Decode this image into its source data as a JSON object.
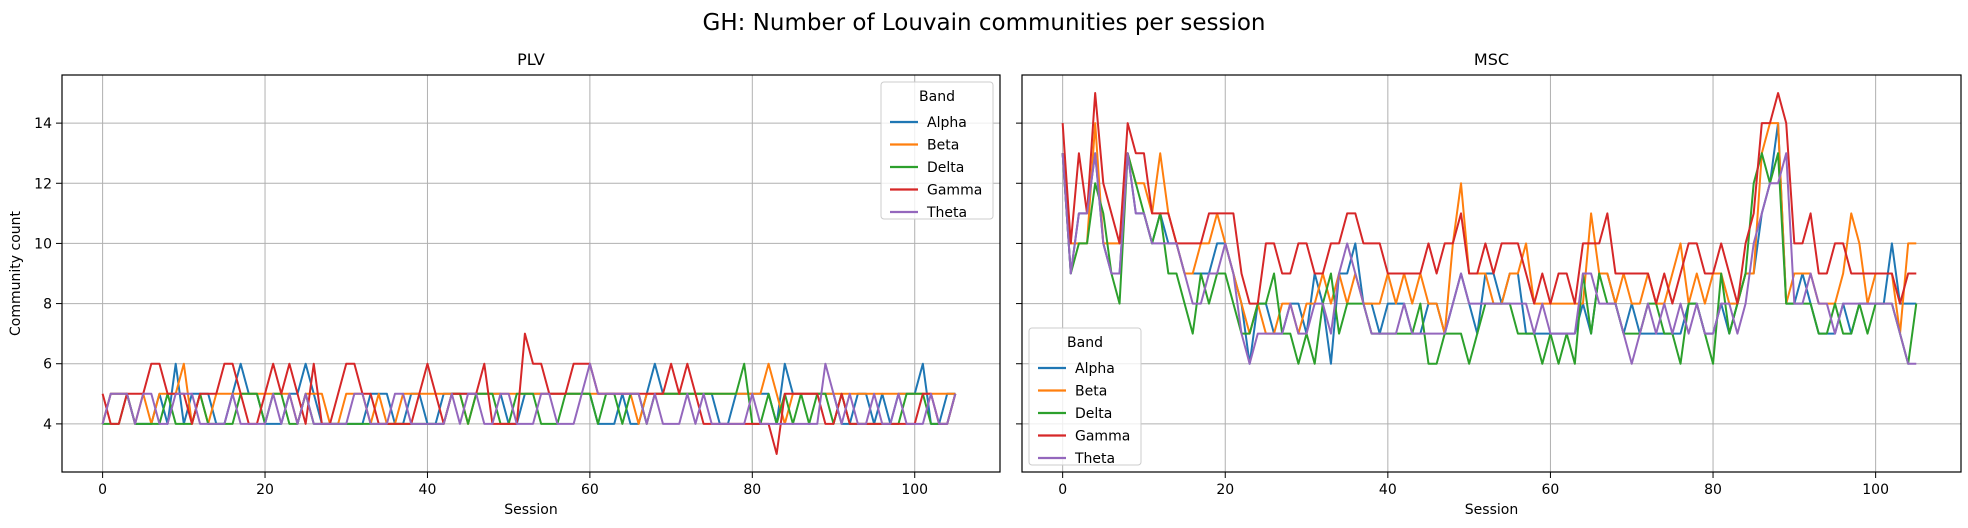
{
  "figure": {
    "suptitle": "GH: Number of Louvain communities per session"
  },
  "colors": {
    "Alpha": "#1f77b4",
    "Beta": "#ff7f0e",
    "Delta": "#2ca02c",
    "Gamma": "#d62728",
    "Theta": "#9467bd",
    "grid": "#b0b0b0"
  },
  "chart_data": [
    {
      "type": "line",
      "title": "PLV",
      "xlabel": "Session",
      "ylabel": "Community count",
      "xlim": [
        -5,
        110.5
      ],
      "ylim": [
        2.4,
        15.6
      ],
      "xticks": [
        0,
        20,
        40,
        60,
        80,
        100
      ],
      "yticks": [
        4,
        6,
        8,
        10,
        12,
        14
      ],
      "grid": true,
      "legend_title": "Band",
      "legend_position": "top-right",
      "series": [
        {
          "name": "Alpha",
          "values": [
            4,
            5,
            5,
            5,
            4,
            4,
            4,
            5,
            4,
            6,
            4,
            5,
            5,
            5,
            4,
            4,
            5,
            6,
            5,
            5,
            4,
            4,
            4,
            5,
            5,
            6,
            5,
            4,
            4,
            4,
            4,
            4,
            4,
            5,
            5,
            5,
            4,
            4,
            5,
            5,
            4,
            4,
            5,
            5,
            5,
            5,
            5,
            5,
            5,
            5,
            4,
            4,
            5,
            5,
            5,
            5,
            5,
            5,
            5,
            5,
            5,
            4,
            4,
            4,
            5,
            4,
            4,
            5,
            6,
            5,
            5,
            5,
            5,
            5,
            5,
            5,
            4,
            4,
            5,
            5,
            5,
            5,
            5,
            4,
            6,
            5,
            5,
            5,
            5,
            5,
            5,
            4,
            4,
            5,
            5,
            4,
            5,
            4,
            5,
            5,
            5,
            6,
            4,
            4,
            5,
            5
          ]
        },
        {
          "name": "Beta",
          "values": [
            4,
            5,
            5,
            5,
            4,
            5,
            4,
            5,
            5,
            5,
            6,
            4,
            5,
            4,
            5,
            5,
            5,
            5,
            5,
            5,
            5,
            5,
            5,
            5,
            4,
            5,
            5,
            5,
            4,
            4,
            5,
            5,
            5,
            4,
            5,
            4,
            4,
            5,
            5,
            5,
            5,
            5,
            5,
            5,
            5,
            4,
            5,
            5,
            5,
            5,
            5,
            5,
            5,
            5,
            5,
            5,
            5,
            5,
            5,
            5,
            5,
            5,
            5,
            5,
            5,
            5,
            4,
            5,
            5,
            5,
            5,
            5,
            5,
            5,
            5,
            5,
            5,
            5,
            5,
            5,
            5,
            5,
            6,
            5,
            4,
            5,
            5,
            5,
            5,
            5,
            5,
            5,
            5,
            5,
            5,
            5,
            5,
            5,
            5,
            5,
            5,
            5,
            5,
            5,
            5,
            5
          ]
        },
        {
          "name": "Delta",
          "values": [
            4,
            4,
            4,
            5,
            4,
            4,
            4,
            4,
            5,
            4,
            4,
            4,
            5,
            4,
            4,
            4,
            4,
            5,
            5,
            5,
            4,
            5,
            5,
            4,
            4,
            5,
            4,
            4,
            4,
            4,
            4,
            4,
            4,
            4,
            4,
            4,
            4,
            4,
            4,
            4,
            4,
            4,
            4,
            5,
            5,
            4,
            5,
            5,
            5,
            4,
            4,
            5,
            5,
            5,
            4,
            4,
            4,
            5,
            5,
            5,
            5,
            4,
            5,
            5,
            4,
            5,
            5,
            4,
            5,
            5,
            5,
            5,
            5,
            5,
            5,
            5,
            5,
            5,
            5,
            6,
            4,
            4,
            5,
            4,
            5,
            4,
            5,
            4,
            5,
            5,
            4,
            5,
            4,
            4,
            4,
            4,
            4,
            4,
            4,
            5,
            5,
            5,
            4,
            4,
            4,
            5
          ]
        },
        {
          "name": "Gamma",
          "values": [
            5,
            4,
            4,
            5,
            5,
            5,
            6,
            6,
            5,
            5,
            5,
            4,
            5,
            5,
            5,
            6,
            6,
            5,
            4,
            4,
            5,
            6,
            5,
            6,
            5,
            4,
            6,
            4,
            4,
            5,
            6,
            6,
            5,
            5,
            4,
            4,
            4,
            4,
            4,
            5,
            6,
            5,
            4,
            5,
            5,
            5,
            5,
            6,
            4,
            4,
            4,
            4,
            7,
            6,
            6,
            5,
            5,
            5,
            6,
            6,
            6,
            5,
            5,
            5,
            5,
            5,
            5,
            5,
            5,
            5,
            6,
            5,
            6,
            5,
            4,
            4,
            4,
            4,
            4,
            4,
            4,
            4,
            4,
            3,
            5,
            5,
            5,
            5,
            5,
            4,
            4,
            5,
            4,
            4,
            4,
            4,
            4,
            4,
            4,
            4,
            4,
            5,
            5,
            4,
            4,
            5
          ]
        },
        {
          "name": "Theta",
          "values": [
            4,
            5,
            5,
            5,
            4,
            5,
            5,
            4,
            4,
            5,
            5,
            5,
            4,
            4,
            4,
            4,
            5,
            4,
            4,
            4,
            4,
            5,
            4,
            5,
            4,
            5,
            4,
            4,
            4,
            4,
            4,
            5,
            5,
            4,
            4,
            4,
            5,
            5,
            4,
            4,
            4,
            4,
            4,
            5,
            4,
            5,
            5,
            4,
            4,
            5,
            5,
            4,
            4,
            4,
            5,
            5,
            4,
            4,
            4,
            5,
            6,
            5,
            5,
            5,
            5,
            5,
            5,
            4,
            5,
            4,
            4,
            4,
            5,
            4,
            5,
            4,
            4,
            4,
            4,
            4,
            5,
            4,
            4,
            4,
            4,
            4,
            4,
            4,
            4,
            6,
            5,
            4,
            5,
            4,
            4,
            5,
            4,
            4,
            5,
            4,
            4,
            4,
            5,
            4,
            4,
            5
          ]
        }
      ]
    },
    {
      "type": "line",
      "title": "MSC",
      "xlabel": "Session",
      "ylabel": "",
      "xlim": [
        -5,
        110.5
      ],
      "ylim": [
        2.4,
        15.6
      ],
      "xticks": [
        0,
        20,
        40,
        60,
        80,
        100
      ],
      "yticks": [
        4,
        6,
        8,
        10,
        12,
        14
      ],
      "grid": true,
      "legend_title": "Band",
      "legend_position": "lower-left",
      "series": [
        {
          "name": "Alpha",
          "values": [
            13,
            9,
            11,
            11,
            13,
            10,
            9,
            9,
            13,
            11,
            11,
            10,
            11,
            10,
            10,
            9,
            9,
            9,
            9,
            10,
            10,
            9,
            8,
            6,
            8,
            8,
            7,
            7,
            8,
            8,
            7,
            9,
            8,
            6,
            9,
            9,
            10,
            8,
            8,
            7,
            8,
            8,
            8,
            7,
            7,
            8,
            8,
            7,
            8,
            9,
            8,
            7,
            9,
            9,
            8,
            9,
            9,
            7,
            7,
            7,
            7,
            7,
            7,
            7,
            8,
            7,
            9,
            9,
            8,
            7,
            8,
            7,
            7,
            7,
            7,
            7,
            7,
            8,
            8,
            7,
            7,
            8,
            7,
            8,
            9,
            9,
            11,
            12,
            14,
            8,
            8,
            9,
            8,
            7,
            7,
            7,
            8,
            7,
            8,
            8,
            8,
            8,
            10,
            8,
            8,
            8
          ]
        },
        {
          "name": "Beta",
          "values": [
            13,
            10,
            10,
            10,
            14,
            10,
            10,
            10,
            13,
            12,
            12,
            11,
            13,
            11,
            10,
            9,
            9,
            10,
            10,
            11,
            10,
            9,
            8,
            7,
            8,
            7,
            7,
            8,
            8,
            7,
            8,
            8,
            9,
            8,
            9,
            8,
            9,
            8,
            8,
            8,
            9,
            8,
            9,
            8,
            9,
            8,
            8,
            7,
            10,
            12,
            9,
            9,
            9,
            8,
            8,
            9,
            9,
            10,
            8,
            8,
            8,
            8,
            8,
            8,
            8,
            11,
            9,
            9,
            8,
            9,
            8,
            8,
            9,
            8,
            8,
            9,
            10,
            8,
            9,
            8,
            9,
            9,
            8,
            8,
            9,
            9,
            13,
            14,
            14,
            8,
            9,
            9,
            9,
            8,
            8,
            8,
            9,
            11,
            10,
            8,
            9,
            9,
            9,
            7,
            10,
            10
          ]
        },
        {
          "name": "Delta",
          "values": [
            13,
            9,
            10,
            10,
            12,
            11,
            9,
            8,
            13,
            12,
            11,
            10,
            11,
            9,
            9,
            8,
            7,
            9,
            8,
            9,
            9,
            8,
            7,
            7,
            8,
            8,
            9,
            7,
            7,
            6,
            7,
            6,
            8,
            9,
            7,
            8,
            8,
            8,
            7,
            7,
            7,
            7,
            7,
            7,
            8,
            6,
            6,
            7,
            7,
            7,
            6,
            7,
            8,
            8,
            8,
            8,
            7,
            7,
            7,
            6,
            7,
            6,
            7,
            6,
            9,
            7,
            9,
            8,
            8,
            7,
            7,
            7,
            8,
            8,
            7,
            7,
            6,
            8,
            8,
            7,
            6,
            9,
            7,
            8,
            9,
            12,
            13,
            12,
            13,
            8,
            8,
            8,
            8,
            7,
            7,
            8,
            7,
            7,
            8,
            7,
            8,
            8,
            8,
            7,
            6,
            8
          ]
        },
        {
          "name": "Gamma",
          "values": [
            14,
            10,
            13,
            11,
            15,
            12,
            11,
            10,
            14,
            13,
            13,
            11,
            11,
            11,
            10,
            10,
            10,
            10,
            11,
            11,
            11,
            11,
            9,
            8,
            8,
            10,
            10,
            9,
            9,
            10,
            10,
            9,
            9,
            10,
            10,
            11,
            11,
            10,
            10,
            10,
            9,
            9,
            9,
            9,
            9,
            10,
            9,
            10,
            10,
            11,
            9,
            9,
            10,
            9,
            10,
            10,
            10,
            9,
            8,
            9,
            8,
            9,
            9,
            8,
            10,
            10,
            10,
            11,
            9,
            9,
            9,
            9,
            9,
            8,
            9,
            8,
            9,
            10,
            10,
            9,
            9,
            10,
            9,
            8,
            10,
            11,
            14,
            14,
            15,
            14,
            10,
            10,
            11,
            9,
            9,
            10,
            10,
            9,
            9,
            9,
            9,
            9,
            9,
            8,
            9,
            9
          ]
        },
        {
          "name": "Theta",
          "values": [
            13,
            9,
            11,
            11,
            13,
            10,
            9,
            9,
            13,
            11,
            11,
            10,
            10,
            10,
            10,
            9,
            8,
            8,
            9,
            9,
            10,
            9,
            7,
            6,
            7,
            7,
            7,
            7,
            8,
            7,
            7,
            8,
            8,
            7,
            9,
            10,
            9,
            8,
            7,
            7,
            7,
            7,
            8,
            7,
            7,
            7,
            7,
            7,
            8,
            9,
            8,
            8,
            8,
            8,
            8,
            8,
            8,
            8,
            7,
            8,
            7,
            7,
            7,
            7,
            9,
            9,
            8,
            8,
            8,
            7,
            6,
            7,
            8,
            7,
            8,
            7,
            8,
            7,
            8,
            7,
            7,
            8,
            8,
            7,
            8,
            10,
            11,
            12,
            12,
            13,
            8,
            8,
            9,
            8,
            8,
            7,
            8,
            8,
            8,
            8,
            8,
            8,
            8,
            7,
            6,
            6
          ]
        }
      ]
    }
  ]
}
